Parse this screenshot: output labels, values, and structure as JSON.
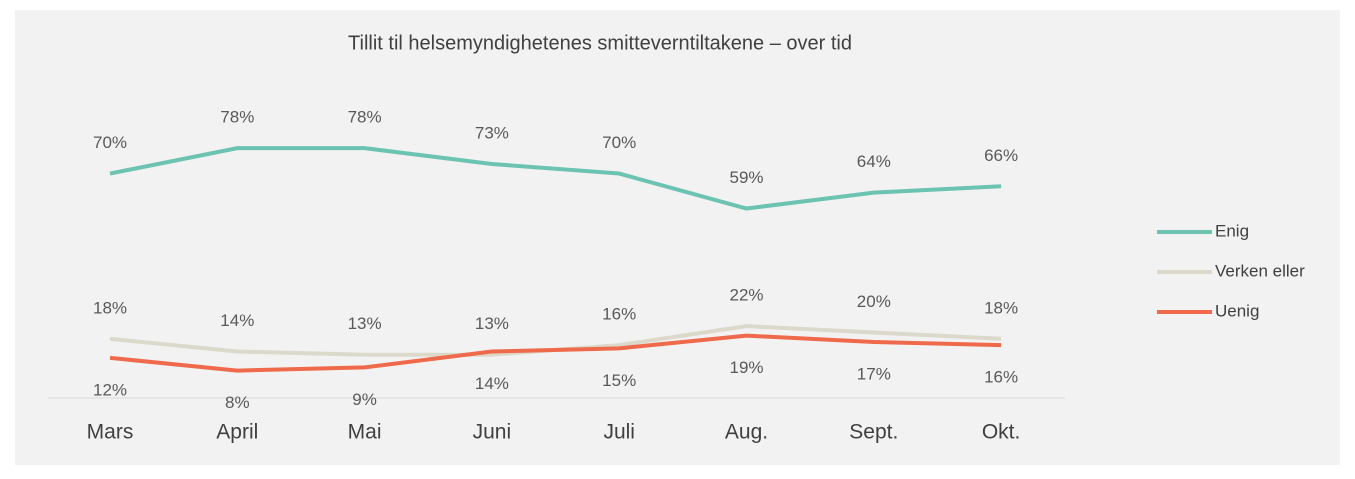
{
  "chart_data": {
    "type": "line",
    "title": "Tillit til helsemyndighetenes smitteverntiltakene – over tid",
    "categories": [
      "Mars",
      "April",
      "Mai",
      "Juni",
      "Juli",
      "Aug.",
      "Sept.",
      "Okt."
    ],
    "ylim": [
      0,
      90
    ],
    "series": [
      {
        "name": "Enig",
        "color": "#6cc3b2",
        "values": [
          70,
          78,
          78,
          73,
          70,
          59,
          64,
          66
        ],
        "value_labels": [
          "70%",
          "78%",
          "78%",
          "73%",
          "70%",
          "59%",
          "64%",
          "66%"
        ]
      },
      {
        "name": "Verken eller",
        "color": "#dcd9cb",
        "values": [
          18,
          14,
          13,
          13,
          16,
          22,
          20,
          18
        ],
        "value_labels": [
          "18%",
          "14%",
          "13%",
          "13%",
          "16%",
          "22%",
          "20%",
          "18%"
        ]
      },
      {
        "name": "Uenig",
        "color": "#ef6a4b",
        "values": [
          12,
          8,
          9,
          14,
          15,
          19,
          17,
          16
        ],
        "value_labels": [
          "12%",
          "8%",
          "9%",
          "14%",
          "15%",
          "19%",
          "17%",
          "16%"
        ]
      }
    ],
    "legend": "right"
  }
}
